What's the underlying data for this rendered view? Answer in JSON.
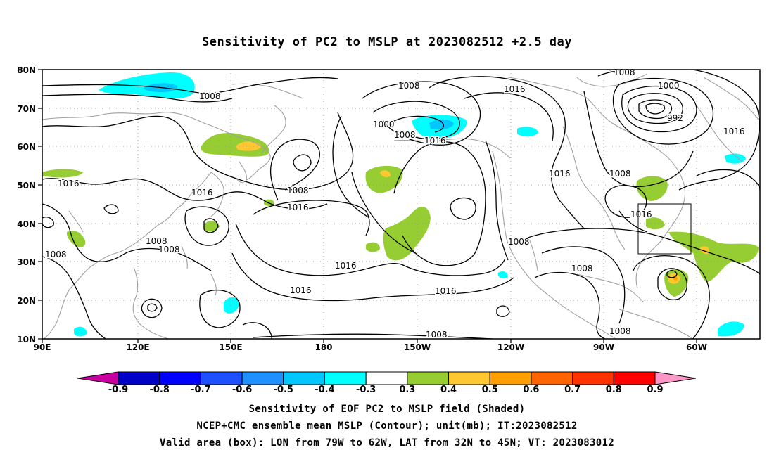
{
  "title": "Sensitivity of PC2 to MSLP at 2023082512 +2.5 day",
  "map": {
    "lat_labels": [
      "80N",
      "70N",
      "60N",
      "50N",
      "40N",
      "30N",
      "20N",
      "10N"
    ],
    "lon_labels": [
      "90E",
      "120E",
      "150E",
      "180",
      "150W",
      "120W",
      "90W",
      "60W"
    ],
    "contour_labels": [
      {
        "text": "1008"
      },
      {
        "text": "1016"
      },
      {
        "text": "1008"
      },
      {
        "text": "1000"
      },
      {
        "text": "992"
      },
      {
        "text": "1008"
      },
      {
        "text": "1016"
      },
      {
        "text": "1000"
      },
      {
        "text": "1008"
      },
      {
        "text": "1016"
      },
      {
        "text": "1016"
      },
      {
        "text": "1008"
      },
      {
        "text": "1016"
      },
      {
        "text": "1008"
      },
      {
        "text": "1016"
      },
      {
        "text": "1016"
      },
      {
        "text": "1016"
      },
      {
        "text": "1008"
      },
      {
        "text": "1008"
      },
      {
        "text": "1008"
      },
      {
        "text": "1008"
      },
      {
        "text": "1016"
      },
      {
        "text": "1016"
      },
      {
        "text": "1016"
      },
      {
        "text": "1008"
      },
      {
        "text": "1008"
      },
      {
        "text": "1008"
      }
    ],
    "valid_box_label": "valid-area-box"
  },
  "colorbar": {
    "labels": [
      "-0.9",
      "-0.8",
      "-0.7",
      "-0.6",
      "-0.5",
      "-0.4",
      "-0.3",
      "0.3",
      "0.4",
      "0.5",
      "0.6",
      "0.7",
      "0.8",
      "0.9"
    ],
    "colors": [
      "#0000c8",
      "#0000ff",
      "#1e50ff",
      "#1e90ff",
      "#00c8ff",
      "#00ffff",
      "#ffffff",
      "#96cd32",
      "#ffc832",
      "#ffa000",
      "#ff6400",
      "#ff3200",
      "#ff0000"
    ],
    "left_arrow_color": "#c800a0",
    "right_arrow_color": "#ff96c8"
  },
  "captions": {
    "line1": "Sensitivity of EOF PC2 to MSLP field (Shaded)",
    "line2": "NCEP+CMC ensemble mean MSLP (Contour); unit(mb); IT:2023082512",
    "line3": "Valid area (box): LON from 79W to 62W, LAT from 32N to 45N; VT: 2023083012"
  }
}
